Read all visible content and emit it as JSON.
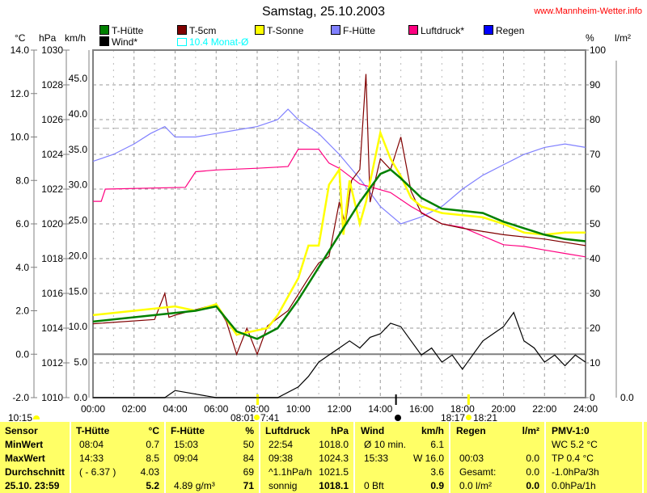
{
  "title": "Samstag, 25.10.2003",
  "site": "www.Mannheim-Wetter.info",
  "axis_units": {
    "c": "°C",
    "hpa": "hPa",
    "kmh": "km/h",
    "pct": "%",
    "lm2": "l/m²"
  },
  "legend": [
    {
      "label": "T-Hütte",
      "color": "#008000"
    },
    {
      "label": "T-5cm",
      "color": "#800000"
    },
    {
      "label": "T-Sonne",
      "color": "#ffff00"
    },
    {
      "label": "F-Hütte",
      "color": "#8080ff"
    },
    {
      "label": "Luftdruck*",
      "color": "#ff0080"
    },
    {
      "label": "Regen",
      "color": "#0000ff"
    },
    {
      "label": "Wind*",
      "color": "#000000"
    },
    {
      "label": "10.4 Monat-Ø",
      "color": "#00ffff"
    }
  ],
  "chart_data": {
    "type": "line",
    "title": "Samstag, 25.10.2003",
    "x_ticks": [
      "00:00",
      "02:00",
      "04:00",
      "06:00",
      "08:00",
      "10:00",
      "12:00",
      "14:00",
      "16:00",
      "18:00",
      "20:00",
      "22:00",
      "24:00"
    ],
    "axes": {
      "c": {
        "range": [
          -2,
          14
        ],
        "ticks": [
          "14.0",
          "12.0",
          "10.0",
          "8.0",
          "6.0",
          "4.0",
          "2.0",
          "0.0",
          "-2.0"
        ]
      },
      "hpa": {
        "range": [
          1010,
          1030
        ],
        "ticks": [
          "1030",
          "1028",
          "1026",
          "1024",
          "1022",
          "1020",
          "1018",
          "1016",
          "1014",
          "1012",
          "1010"
        ]
      },
      "kmh": {
        "range": [
          0,
          49
        ],
        "ticks": [
          "45.0",
          "40.0",
          "35.0",
          "30.0",
          "25.0",
          "20.0",
          "15.0",
          "10.0",
          "5.0",
          "0.0"
        ]
      },
      "pct": {
        "range": [
          0,
          100
        ],
        "ticks": [
          "100",
          "90",
          "80",
          "70",
          "60",
          "50",
          "40",
          "30",
          "20",
          "10",
          "0"
        ]
      },
      "lm2": {
        "ticks": [
          "0.0"
        ]
      }
    },
    "monthly_avg_c": 10.4,
    "series": [
      {
        "name": "F-Hütte",
        "axis": "pct",
        "color": "#8080ff",
        "x": [
          0,
          1,
          2,
          2.8,
          3.5,
          4,
          5,
          6,
          7,
          8,
          9,
          9.5,
          10,
          11,
          12,
          13,
          14,
          15,
          16,
          17,
          18,
          19,
          20,
          21,
          22,
          23,
          24
        ],
        "y": [
          68,
          70,
          73,
          76,
          78,
          75,
          75,
          76,
          77,
          78,
          80,
          83,
          80,
          76,
          70,
          63,
          55,
          50,
          52,
          55,
          60,
          64,
          67,
          70,
          72,
          73,
          72
        ]
      },
      {
        "name": "Luftdruck*",
        "axis": "hpa",
        "color": "#ff0080",
        "x": [
          0,
          0.4,
          0.6,
          4.5,
          5,
          6,
          8,
          9.5,
          10,
          11,
          11.5,
          12,
          13,
          14.5,
          15.5,
          17,
          18,
          19,
          20,
          21,
          22,
          23,
          24
        ],
        "y": [
          1021.3,
          1021.3,
          1022,
          1022.1,
          1023,
          1023.1,
          1023.2,
          1023.3,
          1024.3,
          1024.3,
          1023.5,
          1023.2,
          1022.3,
          1021.8,
          1021,
          1020,
          1019.8,
          1019.3,
          1018.8,
          1018.7,
          1018.5,
          1018.3,
          1018.1
        ]
      },
      {
        "name": "Wind*",
        "axis": "kmh",
        "color": "#000000",
        "x": [
          0,
          2,
          3.5,
          4,
          6,
          8,
          9,
          10,
          10.5,
          11,
          11.5,
          12,
          12.5,
          13,
          13.5,
          14,
          14.5,
          15,
          15.5,
          16,
          16.5,
          17,
          17.5,
          18,
          18.5,
          19,
          19.5,
          20,
          20.5,
          21,
          21.5,
          22,
          22.5,
          23,
          23.5,
          24
        ],
        "y": [
          0,
          0,
          0,
          1,
          0,
          0,
          0,
          1.5,
          3,
          5,
          6,
          7,
          8,
          7,
          8.5,
          9,
          10.5,
          10,
          8,
          6,
          7,
          5,
          6,
          4,
          6,
          8,
          9,
          10,
          12,
          8,
          7,
          5,
          6,
          4.5,
          6,
          5
        ]
      },
      {
        "name": "T-5cm",
        "axis": "c",
        "color": "#800000",
        "x": [
          0,
          3,
          3.5,
          3.7,
          4,
          6,
          6.5,
          7,
          7.5,
          8,
          8.5,
          9.5,
          10.5,
          11,
          11.5,
          12,
          12.3,
          12.6,
          13,
          13.3,
          13.5,
          14,
          14.5,
          15,
          15.5,
          16,
          17,
          18,
          20,
          22,
          24
        ],
        "y": [
          1.4,
          1.6,
          2.8,
          1.7,
          1.8,
          2.3,
          1.5,
          0.0,
          1.2,
          0.0,
          1.3,
          2.0,
          3.5,
          4.2,
          4.5,
          7.0,
          6.0,
          8.0,
          8.5,
          12.9,
          7.0,
          9.0,
          8.5,
          10.0,
          7.5,
          6.5,
          6.0,
          5.8,
          5.5,
          5.3,
          5.0
        ]
      },
      {
        "name": "T-Sonne",
        "axis": "c",
        "color": "#ffff00",
        "x": [
          0,
          2,
          4,
          5,
          6,
          7,
          8,
          8.5,
          9,
          10,
          10.5,
          11,
          11.5,
          12,
          12.2,
          12.5,
          13,
          13.3,
          14,
          14.5,
          15,
          15.5,
          16,
          17,
          18,
          19,
          20,
          21,
          22,
          23,
          24
        ],
        "y": [
          1.8,
          2.0,
          2.2,
          2.0,
          2.3,
          0.9,
          1.1,
          1.2,
          1.8,
          3.5,
          5.0,
          5.0,
          7.8,
          8.5,
          5.5,
          8.0,
          6.0,
          7.0,
          10.2,
          9.0,
          8.2,
          7.2,
          6.8,
          6.5,
          6.4,
          6.3,
          6.0,
          5.6,
          5.5,
          5.6,
          5.6
        ]
      },
      {
        "name": "T-Hütte",
        "axis": "c",
        "color": "#008000",
        "x": [
          0,
          5,
          6,
          7,
          8,
          9,
          10,
          11,
          12,
          13,
          14,
          14.5,
          15,
          16,
          17,
          18,
          19,
          20,
          21,
          22,
          23,
          24
        ],
        "y": [
          1.5,
          2.0,
          2.2,
          1.05,
          0.7,
          1.2,
          2.5,
          4.0,
          5.5,
          7.0,
          8.3,
          8.5,
          8.1,
          7.2,
          6.7,
          6.6,
          6.5,
          6.1,
          5.8,
          5.5,
          5.3,
          5.2
        ]
      }
    ]
  },
  "sun": {
    "left": "10:15",
    "sunrise": "08:01",
    "sunrise2": "7:41",
    "sunset": "18:17",
    "sunset2": "18:21"
  },
  "table": {
    "sensor": [
      "Sensor",
      "MinWert",
      "MaxWert",
      "Durchschnitt",
      "25.10. 23:59"
    ],
    "t_huette": {
      "h": "T-Hütte",
      "u": "°C",
      "rows": [
        [
          "08:04",
          "0.7"
        ],
        [
          "14:33",
          "8.5"
        ],
        [
          "( - 6.37 )",
          "4.03"
        ],
        [
          "",
          "5.2"
        ]
      ]
    },
    "f_huette": {
      "h": "F-Hütte",
      "u": "%",
      "rows": [
        [
          "15:03",
          "50"
        ],
        [
          "09:04",
          "84"
        ],
        [
          "",
          "69"
        ],
        [
          "4.89 g/m³",
          "71"
        ]
      ]
    },
    "luftdruck": {
      "h": "Luftdruck",
      "u": "hPa",
      "rows": [
        [
          "22:54",
          "1018.0"
        ],
        [
          "09:38",
          "1024.3"
        ],
        [
          "^1.1hPa/h",
          "1021.5"
        ],
        [
          "sonnig",
          "1018.1"
        ]
      ]
    },
    "wind": {
      "h": "Wind",
      "u": "km/h",
      "rows": [
        [
          "Ø 10 min.",
          "6.1"
        ],
        [
          "15:33",
          "W 16.0"
        ],
        [
          "",
          "3.6"
        ],
        [
          "0 Bft",
          "0.9"
        ]
      ]
    },
    "regen": {
      "h": "Regen",
      "u": "l/m²",
      "rows": [
        [
          "",
          ""
        ],
        [
          "00:03",
          "0.0"
        ],
        [
          "Gesamt:",
          "0.0"
        ],
        [
          "0.0 l/m²",
          "0.0"
        ]
      ]
    },
    "pmv": {
      "h": "PMV-1:0",
      "rows": [
        "WC 5.2 °C",
        "TP 0.4 °C",
        "-1.0hPa/3h",
        "0.0hPa/1h"
      ]
    }
  }
}
